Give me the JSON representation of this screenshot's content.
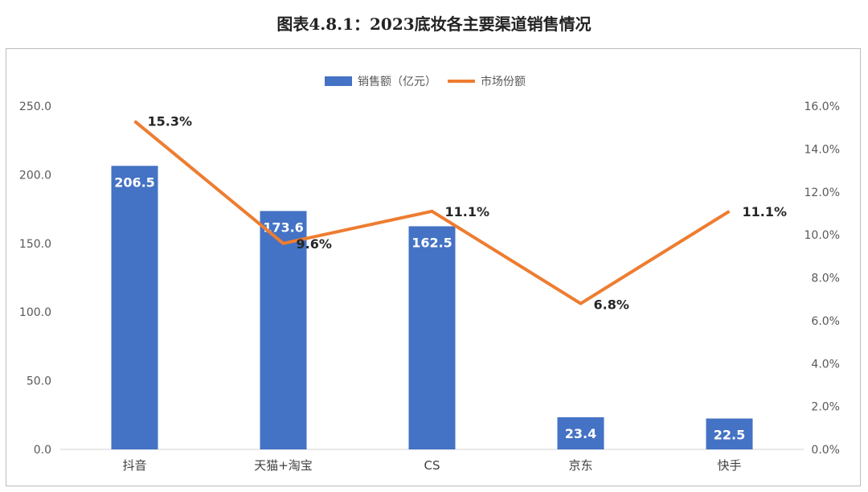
{
  "title": "图表4.8.1：2023底妆各主要渠道销售情况",
  "chart_data": {
    "type": "bar",
    "categories": [
      "抖音",
      "天猫+淘宝",
      "CS",
      "京东",
      "快手"
    ],
    "series": [
      {
        "name": "销售额（亿元）",
        "type": "bar",
        "axis": "left",
        "values": [
          206.5,
          173.6,
          162.5,
          23.4,
          22.5
        ],
        "color": "#4472C4"
      },
      {
        "name": "市场份额",
        "type": "line",
        "axis": "right",
        "values": [
          15.3,
          9.6,
          11.1,
          6.8,
          11.1
        ],
        "color": "#ED7D31"
      }
    ],
    "bar_labels": [
      "206.5",
      "173.6",
      "162.5",
      "23.4",
      "22.5"
    ],
    "line_labels": [
      "15.3%",
      "9.6%",
      "11.1%",
      "6.8%",
      "11.1%"
    ],
    "y_left": {
      "min": 0,
      "max": 250,
      "step": 50,
      "ticks": [
        "0.0",
        "50.0",
        "100.0",
        "150.0",
        "200.0",
        "250.0"
      ]
    },
    "y_right": {
      "min": 0,
      "max": 16,
      "step": 2,
      "ticks": [
        "0.0%",
        "2.0%",
        "4.0%",
        "6.0%",
        "8.0%",
        "10.0%",
        "12.0%",
        "14.0%",
        "16.0%"
      ]
    },
    "legend_position": "top-center",
    "grid": false
  }
}
